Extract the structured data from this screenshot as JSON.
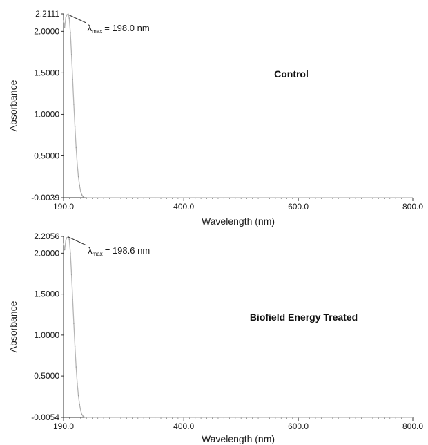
{
  "chart_data": [
    {
      "type": "line",
      "panel_label": "Control",
      "xlabel": "Wavelength (nm)",
      "ylabel": "Absorbance",
      "xlim": [
        190.0,
        800.0
      ],
      "ylim": [
        -0.0039,
        2.2111
      ],
      "x_ticks": [
        "190.0",
        "400.0",
        "600.0",
        "800.0"
      ],
      "y_ticks": [
        "-0.0039",
        "0.5000",
        "1.0000",
        "1.5000",
        "2.0000",
        "2.2111"
      ],
      "annotation": {
        "symbol": "λ",
        "subscript": "max",
        "text": "= 198.0 nm",
        "x": 198.0
      },
      "series": [
        {
          "x": [
            190,
            192,
            194,
            196,
            198,
            200,
            202,
            204,
            206,
            208,
            210,
            212,
            214,
            216,
            218,
            220,
            222,
            224,
            226,
            228,
            230,
            800
          ],
          "y": [
            2.13,
            2.05,
            2.17,
            2.2,
            2.2111,
            2.16,
            1.98,
            1.72,
            1.42,
            1.12,
            0.85,
            0.6,
            0.4,
            0.25,
            0.14,
            0.07,
            0.03,
            0.01,
            0.0,
            -0.003,
            -0.0039,
            -0.0039
          ]
        }
      ]
    },
    {
      "type": "line",
      "panel_label": "Biofield Energy Treated",
      "xlabel": "Wavelength (nm)",
      "ylabel": "Absorbance",
      "xlim": [
        190.0,
        800.0
      ],
      "ylim": [
        -0.0054,
        2.2056
      ],
      "x_ticks": [
        "190.0",
        "400.0",
        "600.0",
        "800.0"
      ],
      "y_ticks": [
        "-0.0054",
        "0.5000",
        "1.0000",
        "1.5000",
        "2.0000",
        "2.2056"
      ],
      "annotation": {
        "symbol": "λ",
        "subscript": "max",
        "text": "= 198.6 nm",
        "x": 198.6
      },
      "series": [
        {
          "x": [
            190,
            192,
            194,
            196,
            198.6,
            200,
            202,
            204,
            206,
            208,
            210,
            212,
            214,
            216,
            218,
            220,
            222,
            224,
            226,
            228,
            230,
            800
          ],
          "y": [
            2.12,
            2.04,
            2.16,
            2.19,
            2.2056,
            2.17,
            2.0,
            1.74,
            1.44,
            1.14,
            0.86,
            0.61,
            0.41,
            0.26,
            0.15,
            0.08,
            0.03,
            0.01,
            0.0,
            -0.004,
            -0.0054,
            -0.0054
          ]
        }
      ]
    }
  ]
}
